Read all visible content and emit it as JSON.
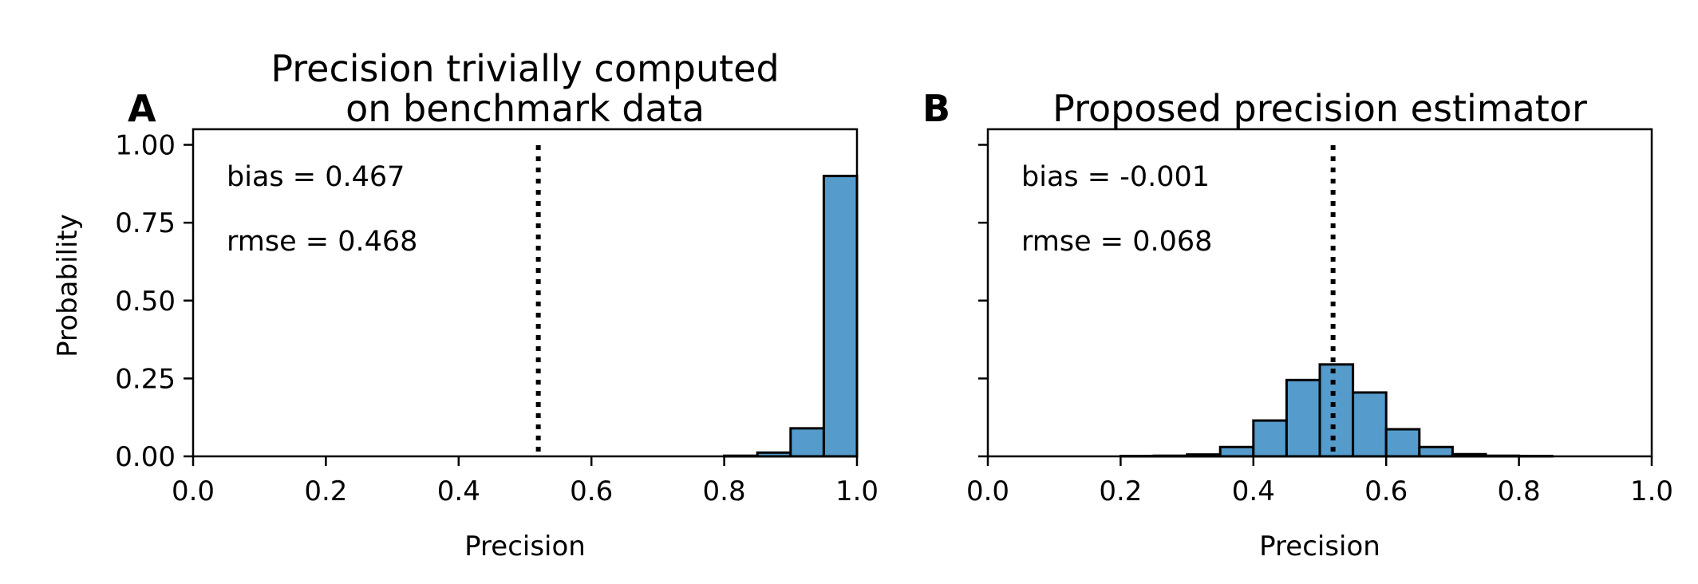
{
  "chart_data": [
    {
      "type": "bar",
      "panel_label": "A",
      "title_lines": [
        "Precision trivially computed",
        "on benchmark data"
      ],
      "xlabel": "Precision",
      "ylabel": "Probability",
      "xlim": [
        0.0,
        1.0
      ],
      "ylim": [
        0.0,
        1.05
      ],
      "xticks": [
        "0.0",
        "0.2",
        "0.4",
        "0.6",
        "0.8",
        "1.0"
      ],
      "yticks": [
        "0.00",
        "0.25",
        "0.50",
        "0.75",
        "1.00"
      ],
      "bin_width": 0.05,
      "bins": [
        {
          "x": 0.8,
          "y": 0.002
        },
        {
          "x": 0.85,
          "y": 0.012
        },
        {
          "x": 0.9,
          "y": 0.09
        },
        {
          "x": 0.95,
          "y": 0.9
        }
      ],
      "reference_x": 0.52,
      "annotations": [
        "bias = 0.467",
        "rmse = 0.468"
      ]
    },
    {
      "type": "bar",
      "panel_label": "B",
      "title_lines": [
        "Proposed precision estimator"
      ],
      "xlabel": "Precision",
      "ylabel": "",
      "xlim": [
        0.0,
        1.0
      ],
      "ylim": [
        0.0,
        1.05
      ],
      "xticks": [
        "0.0",
        "0.2",
        "0.4",
        "0.6",
        "0.8",
        "1.0"
      ],
      "yticks": [],
      "bin_width": 0.05,
      "bins": [
        {
          "x": 0.2,
          "y": 0.001
        },
        {
          "x": 0.25,
          "y": 0.002
        },
        {
          "x": 0.3,
          "y": 0.006
        },
        {
          "x": 0.35,
          "y": 0.03
        },
        {
          "x": 0.4,
          "y": 0.115
        },
        {
          "x": 0.45,
          "y": 0.245
        },
        {
          "x": 0.5,
          "y": 0.295
        },
        {
          "x": 0.55,
          "y": 0.205
        },
        {
          "x": 0.6,
          "y": 0.087
        },
        {
          "x": 0.65,
          "y": 0.03
        },
        {
          "x": 0.7,
          "y": 0.007
        },
        {
          "x": 0.75,
          "y": 0.002
        },
        {
          "x": 0.8,
          "y": 0.001
        }
      ],
      "reference_x": 0.52,
      "annotations": [
        "bias = -0.001",
        "rmse = 0.068"
      ]
    }
  ]
}
